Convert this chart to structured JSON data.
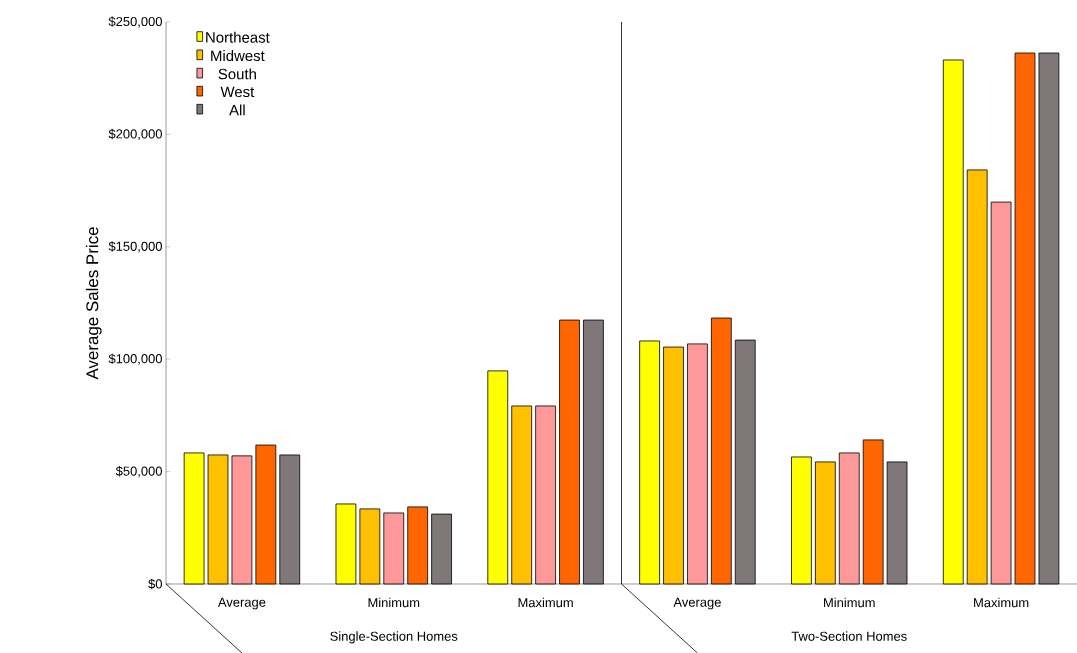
{
  "chart_data": {
    "type": "bar",
    "ylabel": "Average Sales Price",
    "categories": [
      "Average",
      "Minimum",
      "Maximum",
      "Average",
      "Minimum",
      "Maximum"
    ],
    "series": [
      {
        "name": "Northeast",
        "color": "#ffff00",
        "values": [
          58300,
          35600,
          94800,
          108100,
          56500,
          233100
        ]
      },
      {
        "name": "Midwest",
        "color": "#ffc000",
        "values": [
          57400,
          33400,
          79200,
          105400,
          54300,
          184200
        ]
      },
      {
        "name": "South",
        "color": "#ff9999",
        "values": [
          57000,
          31600,
          79200,
          106800,
          58300,
          169900
        ]
      },
      {
        "name": "West",
        "color": "#ff6600",
        "values": [
          61800,
          34300,
          117400,
          118300,
          64100,
          236200
        ]
      },
      {
        "name": "All",
        "color": "#7f7778",
        "values": [
          57400,
          31100,
          117400,
          108500,
          54300,
          236200
        ]
      }
    ],
    "ylim": [
      0,
      250000
    ],
    "yticks": [
      {
        "value": 0,
        "label": "$0"
      },
      {
        "value": 50000,
        "label": "$50,000"
      },
      {
        "value": 100000,
        "label": "$100,000"
      },
      {
        "value": 150000,
        "label": "$150,000"
      },
      {
        "value": 200000,
        "label": "$200,000"
      },
      {
        "value": 250000,
        "label": "$250,000"
      }
    ],
    "annotations": [
      "Single-Section Homes",
      "Two-Section Homes"
    ],
    "legend": "top left",
    "grid": false
  }
}
